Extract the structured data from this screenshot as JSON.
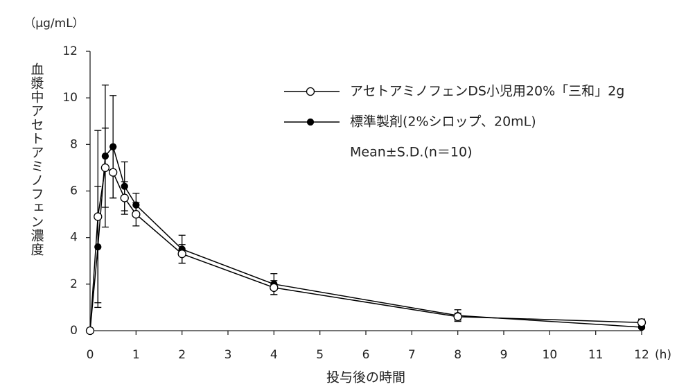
{
  "chart_data": {
    "type": "line",
    "y_unit": "（μg/mL）",
    "y_label": "血漿中アセトアミノフェン濃度",
    "x_label": "投与後の時間",
    "x_unit": "(h)",
    "note": "Mean±S.D.(n＝10)",
    "x": [
      0,
      0.17,
      0.33,
      0.5,
      0.75,
      1,
      2,
      4,
      8,
      12
    ],
    "series": [
      {
        "name": "アセトアミノフェンDS小児用20%「三和」2g",
        "color": "#000000",
        "marker": "open",
        "values": [
          0,
          4.9,
          7.0,
          6.8,
          5.7,
          5.0,
          3.3,
          1.85,
          0.6,
          0.35
        ],
        "errors": [
          0,
          3.7,
          1.7,
          1.1,
          0.7,
          0.5,
          0.4,
          0.3,
          0.15,
          0.15
        ]
      },
      {
        "name": "標準製剤(2%シロップ、20mL)",
        "color": "#000000",
        "marker": "filled",
        "values": [
          0,
          3.6,
          7.5,
          7.9,
          6.2,
          5.4,
          3.5,
          2.0,
          0.65,
          0.15
        ],
        "errors": [
          0,
          2.6,
          3.05,
          2.2,
          1.05,
          0.5,
          0.6,
          0.45,
          0.25,
          0.05
        ]
      }
    ],
    "xlim": [
      0,
      12
    ],
    "xticks": [
      0,
      1,
      2,
      3,
      4,
      5,
      6,
      7,
      8,
      9,
      10,
      11,
      12
    ],
    "ylim": [
      0,
      12
    ],
    "yticks": [
      0,
      2,
      4,
      6,
      8,
      10,
      12
    ],
    "grid": false
  }
}
